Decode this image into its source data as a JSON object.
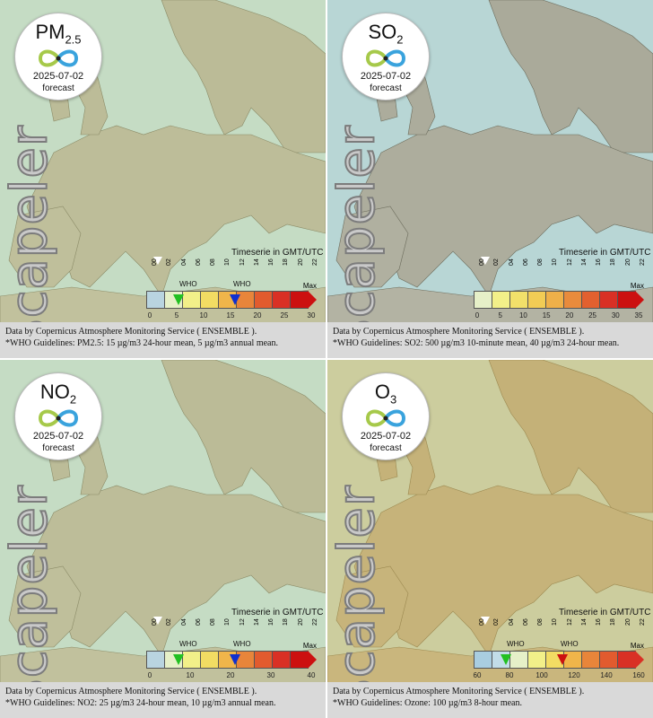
{
  "panels": [
    {
      "pollutant_main": "PM",
      "pollutant_sub": "2.5",
      "date": "2025-07-02",
      "forecast": "forecast",
      "brand": "Scapeler",
      "timeseries_label": "Timeserie in GMT/UTC",
      "ts_hours": [
        "00",
        "02",
        "04",
        "06",
        "08",
        "10",
        "12",
        "14",
        "16",
        "18",
        "20",
        "22"
      ],
      "scale_ticks": [
        "0",
        "5",
        "10",
        "15",
        "20",
        "25",
        "30"
      ],
      "scale_max": "Max",
      "who_labels": [
        "WHO",
        "WHO"
      ],
      "footer_line1": "Data by Copernicus Atmosphere Monitoring Service ( ENSEMBLE ).",
      "footer_line2": "*WHO Guidelines: PM2.5: 15 µg/m3 24-hour mean, 5 µg/m3 annual mean.",
      "colors": [
        "#b9d4e0",
        "#e6f0c8",
        "#f2f089",
        "#f2dc63",
        "#f0b54a",
        "#e8853a",
        "#e25b2e",
        "#d93025",
        "#cc1010"
      ],
      "who_arrows": [
        {
          "color": "#22c022"
        },
        {
          "color": "#1030d0"
        }
      ]
    },
    {
      "pollutant_main": "SO",
      "pollutant_sub": "2",
      "date": "2025-07-02",
      "forecast": "forecast",
      "brand": "Scapeler",
      "timeseries_label": "Timeserie in GMT/UTC",
      "ts_hours": [
        "00",
        "02",
        "04",
        "06",
        "08",
        "10",
        "12",
        "14",
        "16",
        "18",
        "20",
        "22"
      ],
      "scale_ticks": [
        "0",
        "5",
        "10",
        "15",
        "20",
        "25",
        "30",
        "35"
      ],
      "scale_max": "Max",
      "who_labels": [],
      "footer_line1": "Data by Copernicus Atmosphere Monitoring Service ( ENSEMBLE ).",
      "footer_line2": "*WHO Guidelines: SO2: 500 µg/m3 10-minute mean, 40 µg/m3 24-hour mean.",
      "colors": [
        "#e6f0c8",
        "#f2f089",
        "#f2e06a",
        "#f2cc55",
        "#efb049",
        "#e98b3c",
        "#e2602f",
        "#d93025",
        "#cc1010"
      ],
      "who_arrows": []
    },
    {
      "pollutant_main": "NO",
      "pollutant_sub": "2",
      "date": "2025-07-02",
      "forecast": "forecast",
      "brand": "Scapeler",
      "timeseries_label": "Timeserie in GMT/UTC",
      "ts_hours": [
        "00",
        "02",
        "04",
        "06",
        "08",
        "10",
        "12",
        "14",
        "16",
        "18",
        "20",
        "22"
      ],
      "scale_ticks": [
        "0",
        "10",
        "20",
        "30",
        "40"
      ],
      "scale_max": "Max",
      "who_labels": [
        "WHO",
        "WHO"
      ],
      "footer_line1": "Data by Copernicus Atmosphere Monitoring Service ( ENSEMBLE ).",
      "footer_line2": "*WHO Guidelines: NO2: 25 µg/m3 24-hour mean, 10 µg/m3 annual mean.",
      "colors": [
        "#b9d4e0",
        "#e6f0c8",
        "#f2f089",
        "#f2dc63",
        "#f0b54a",
        "#e8853a",
        "#e25b2e",
        "#d93025",
        "#cc1010"
      ],
      "who_arrows": [
        {
          "color": "#22c022"
        },
        {
          "color": "#1030d0"
        }
      ]
    },
    {
      "pollutant_main": "O",
      "pollutant_sub": "3",
      "date": "2025-07-02",
      "forecast": "forecast",
      "brand": "Scapeler",
      "timeseries_label": "Timeserie in GMT/UTC",
      "ts_hours": [
        "00",
        "02",
        "04",
        "06",
        "08",
        "10",
        "12",
        "14",
        "16",
        "18",
        "20",
        "22"
      ],
      "scale_ticks": [
        "60",
        "80",
        "100",
        "120",
        "140",
        "160"
      ],
      "scale_max": "Max",
      "who_labels": [
        "WHO",
        "WHO"
      ],
      "footer_line1": "Data by Copernicus Atmosphere Monitoring Service ( ENSEMBLE ).",
      "footer_line2": "*WHO Guidelines: Ozone: 100 µg/m3 8-hour mean.",
      "colors": [
        "#a9cde0",
        "#c2dde8",
        "#e6f0c8",
        "#f2f089",
        "#f2dc63",
        "#f0b54a",
        "#e8853a",
        "#e25b2e",
        "#d93025"
      ],
      "who_arrows": [
        {
          "color": "#22c022"
        },
        {
          "color": "#cc1010"
        }
      ]
    }
  ]
}
